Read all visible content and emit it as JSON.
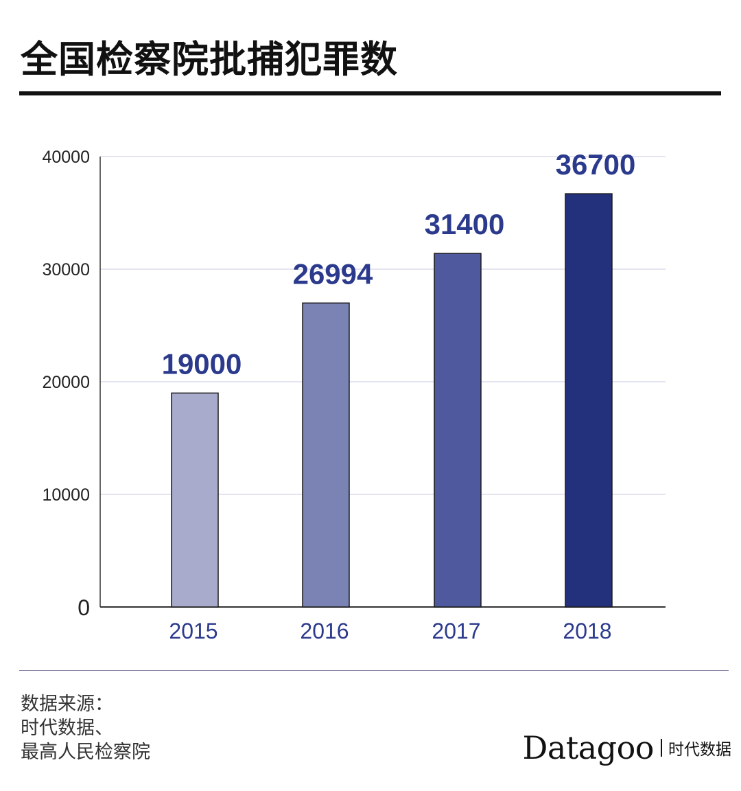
{
  "title": "全国检察院批捕犯罪数",
  "chart_data": {
    "type": "bar",
    "categories": [
      "2015",
      "2016",
      "2017",
      "2018"
    ],
    "values": [
      19000,
      26994,
      31400,
      36700
    ],
    "data_labels": [
      "19000",
      "26994",
      "31400",
      "36700"
    ],
    "bar_colors": [
      "#a8abcc",
      "#7a83b3",
      "#4f5a9e",
      "#23307c"
    ],
    "ylim": [
      0,
      40000
    ],
    "yticks": [
      "0",
      "10000",
      "20000",
      "30000",
      "40000"
    ],
    "ytick_values": [
      0,
      10000,
      20000,
      30000,
      40000
    ],
    "grid": true,
    "label_color": "#2b3a8c",
    "title": "",
    "xlabel": "",
    "ylabel": ""
  },
  "source": {
    "line1": "数据来源：",
    "line2": "时代数据、",
    "line3": "最高人民检察院"
  },
  "brand": {
    "logo": "Datagoo",
    "cn": "时代数据"
  }
}
